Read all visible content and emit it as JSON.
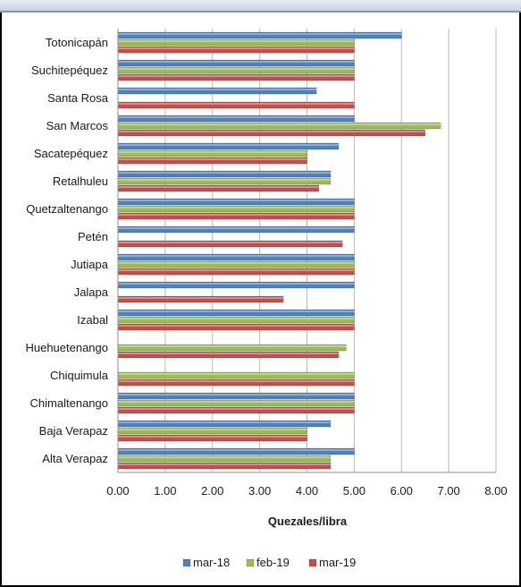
{
  "colors": {
    "mar-18": "#4f81bd",
    "feb-19": "#9bbb59",
    "mar-19": "#c0504d",
    "grid": "#b9b9b9",
    "text": "#1a1a1a"
  },
  "chart_data": {
    "type": "bar",
    "orientation": "horizontal",
    "title": "",
    "xlabel": "Quezales/libra",
    "ylabel": "",
    "xlim": [
      0,
      8
    ],
    "x_ticks": [
      "0.00",
      "1.00",
      "2.00",
      "3.00",
      "4.00",
      "5.00",
      "6.00",
      "7.00",
      "8.00"
    ],
    "grid": true,
    "legend_position": "bottom",
    "categories": [
      "Totonicapán",
      "Suchitepéquez",
      "Santa Rosa",
      "San Marcos",
      "Sacatepéquez",
      "Retalhuleu",
      "Quetzaltenango",
      "Petén",
      "Jutiapa",
      "Jalapa",
      "Izabal",
      "Huehuetenango",
      "Chiquimula",
      "Chimaltenango",
      "Baja Verapaz",
      "Alta Verapaz"
    ],
    "series": [
      {
        "name": "mar-18",
        "color_key": "mar-18",
        "values": [
          6.0,
          5.0,
          4.2,
          5.0,
          4.67,
          4.5,
          5.0,
          5.0,
          5.0,
          5.0,
          5.0,
          null,
          null,
          5.0,
          4.5,
          5.0
        ]
      },
      {
        "name": "feb-19",
        "color_key": "feb-19",
        "values": [
          5.0,
          5.0,
          null,
          6.83,
          4.0,
          4.5,
          5.0,
          null,
          5.0,
          null,
          5.0,
          4.83,
          5.0,
          5.0,
          4.0,
          4.5
        ]
      },
      {
        "name": "mar-19",
        "color_key": "mar-19",
        "values": [
          5.0,
          5.0,
          5.0,
          6.5,
          4.0,
          4.25,
          5.0,
          4.75,
          5.0,
          3.5,
          5.0,
          4.67,
          5.0,
          5.0,
          4.0,
          4.5
        ]
      }
    ]
  }
}
